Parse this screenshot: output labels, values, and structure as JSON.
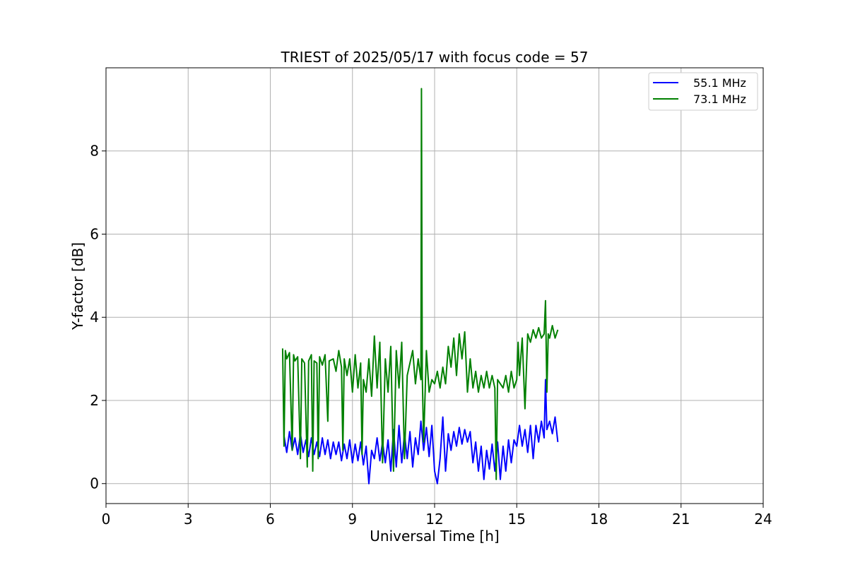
{
  "chart_data": {
    "type": "line",
    "title": "TRIEST of 2025/05/17 with focus code = 57",
    "xlabel": "Universal Time [h]",
    "ylabel": "Y-factor [dB]",
    "xlim": [
      0,
      24
    ],
    "ylim": [
      -0.48,
      10.0
    ],
    "xticks": [
      0,
      3,
      6,
      9,
      12,
      15,
      18,
      21,
      24
    ],
    "yticks": [
      0,
      2,
      4,
      6,
      8
    ],
    "grid": true,
    "legend_position": "top-right",
    "series": [
      {
        "name": "55.1 MHz",
        "color": "#0000ff",
        "points": [
          [
            6.5,
            1.15
          ],
          [
            6.6,
            0.75
          ],
          [
            6.7,
            1.25
          ],
          [
            6.8,
            0.8
          ],
          [
            6.9,
            1.1
          ],
          [
            7.0,
            0.7
          ],
          [
            7.1,
            1.2
          ],
          [
            7.2,
            0.75
          ],
          [
            7.3,
            1.05
          ],
          [
            7.4,
            0.65
          ],
          [
            7.5,
            1.1
          ],
          [
            7.6,
            0.7
          ],
          [
            7.7,
            1.0
          ],
          [
            7.8,
            0.65
          ],
          [
            7.9,
            1.1
          ],
          [
            8.0,
            0.7
          ],
          [
            8.1,
            1.05
          ],
          [
            8.2,
            0.6
          ],
          [
            8.3,
            1.0
          ],
          [
            8.4,
            0.7
          ],
          [
            8.5,
            1.0
          ],
          [
            8.6,
            0.55
          ],
          [
            8.7,
            0.95
          ],
          [
            8.8,
            0.6
          ],
          [
            8.9,
            1.05
          ],
          [
            9.0,
            0.5
          ],
          [
            9.1,
            0.95
          ],
          [
            9.2,
            0.55
          ],
          [
            9.3,
            1.0
          ],
          [
            9.4,
            0.45
          ],
          [
            9.5,
            0.9
          ],
          [
            9.6,
            0.0
          ],
          [
            9.7,
            0.8
          ],
          [
            9.8,
            0.6
          ],
          [
            9.9,
            1.1
          ],
          [
            10.0,
            0.55
          ],
          [
            10.1,
            1.0
          ],
          [
            10.2,
            0.5
          ],
          [
            10.3,
            1.05
          ],
          [
            10.4,
            0.3
          ],
          [
            10.5,
            1.3
          ],
          [
            10.6,
            0.4
          ],
          [
            10.7,
            1.4
          ],
          [
            10.8,
            0.5
          ],
          [
            10.9,
            1.2
          ],
          [
            11.0,
            0.6
          ],
          [
            11.1,
            1.25
          ],
          [
            11.2,
            0.4
          ],
          [
            11.3,
            1.1
          ],
          [
            11.4,
            0.7
          ],
          [
            11.5,
            1.5
          ],
          [
            11.6,
            0.8
          ],
          [
            11.7,
            1.35
          ],
          [
            11.8,
            0.65
          ],
          [
            11.9,
            1.4
          ],
          [
            12.0,
            0.3
          ],
          [
            12.1,
            0.0
          ],
          [
            12.2,
            0.6
          ],
          [
            12.3,
            1.6
          ],
          [
            12.4,
            0.3
          ],
          [
            12.5,
            1.2
          ],
          [
            12.6,
            0.8
          ],
          [
            12.7,
            1.25
          ],
          [
            12.8,
            0.9
          ],
          [
            12.9,
            1.35
          ],
          [
            13.0,
            0.95
          ],
          [
            13.1,
            1.3
          ],
          [
            13.2,
            1.0
          ],
          [
            13.3,
            1.25
          ],
          [
            13.4,
            0.5
          ],
          [
            13.5,
            1.0
          ],
          [
            13.6,
            0.3
          ],
          [
            13.7,
            0.9
          ],
          [
            13.8,
            0.1
          ],
          [
            13.9,
            0.8
          ],
          [
            14.0,
            0.35
          ],
          [
            14.1,
            0.95
          ],
          [
            14.2,
            0.3
          ],
          [
            14.3,
            1.0
          ],
          [
            14.4,
            0.1
          ],
          [
            14.5,
            0.9
          ],
          [
            14.6,
            0.3
          ],
          [
            14.7,
            1.05
          ],
          [
            14.8,
            0.5
          ],
          [
            14.9,
            1.05
          ],
          [
            15.0,
            0.9
          ],
          [
            15.1,
            1.4
          ],
          [
            15.2,
            0.9
          ],
          [
            15.3,
            1.3
          ],
          [
            15.4,
            0.75
          ],
          [
            15.5,
            1.4
          ],
          [
            15.6,
            0.6
          ],
          [
            15.7,
            1.4
          ],
          [
            15.8,
            1.0
          ],
          [
            15.9,
            1.5
          ],
          [
            16.0,
            1.1
          ],
          [
            16.05,
            2.5
          ],
          [
            16.1,
            1.3
          ],
          [
            16.2,
            1.5
          ],
          [
            16.3,
            1.2
          ],
          [
            16.4,
            1.6
          ],
          [
            16.5,
            1.0
          ]
        ]
      },
      {
        "name": "73.1 MHz",
        "color": "#008000",
        "points": [
          [
            6.45,
            3.25
          ],
          [
            6.5,
            0.9
          ],
          [
            6.55,
            3.2
          ],
          [
            6.6,
            3.0
          ],
          [
            6.7,
            3.15
          ],
          [
            6.8,
            0.8
          ],
          [
            6.85,
            3.1
          ],
          [
            6.9,
            2.95
          ],
          [
            7.0,
            3.05
          ],
          [
            7.1,
            0.6
          ],
          [
            7.15,
            3.0
          ],
          [
            7.25,
            2.9
          ],
          [
            7.35,
            0.4
          ],
          [
            7.4,
            2.95
          ],
          [
            7.5,
            3.1
          ],
          [
            7.55,
            0.3
          ],
          [
            7.6,
            2.95
          ],
          [
            7.7,
            2.9
          ],
          [
            7.75,
            0.6
          ],
          [
            7.8,
            3.05
          ],
          [
            7.9,
            2.85
          ],
          [
            8.0,
            3.1
          ],
          [
            8.1,
            1.5
          ],
          [
            8.15,
            2.95
          ],
          [
            8.3,
            3.0
          ],
          [
            8.4,
            2.7
          ],
          [
            8.5,
            3.2
          ],
          [
            8.6,
            2.8
          ],
          [
            8.65,
            0.8
          ],
          [
            8.7,
            3.0
          ],
          [
            8.8,
            2.6
          ],
          [
            8.9,
            3.0
          ],
          [
            9.0,
            2.2
          ],
          [
            9.1,
            3.1
          ],
          [
            9.2,
            2.3
          ],
          [
            9.3,
            2.9
          ],
          [
            9.35,
            0.7
          ],
          [
            9.4,
            2.5
          ],
          [
            9.5,
            2.2
          ],
          [
            9.6,
            3.0
          ],
          [
            9.7,
            2.1
          ],
          [
            9.8,
            3.55
          ],
          [
            9.9,
            2.3
          ],
          [
            10.0,
            3.4
          ],
          [
            10.1,
            0.5
          ],
          [
            10.2,
            3.0
          ],
          [
            10.3,
            2.2
          ],
          [
            10.4,
            3.3
          ],
          [
            10.5,
            0.3
          ],
          [
            10.6,
            3.2
          ],
          [
            10.7,
            2.3
          ],
          [
            10.8,
            3.4
          ],
          [
            10.9,
            0.6
          ],
          [
            11.0,
            2.6
          ],
          [
            11.1,
            2.9
          ],
          [
            11.2,
            3.2
          ],
          [
            11.3,
            2.4
          ],
          [
            11.4,
            3.0
          ],
          [
            11.5,
            2.5
          ],
          [
            11.52,
            9.5
          ],
          [
            11.55,
            2.6
          ],
          [
            11.6,
            1.0
          ],
          [
            11.7,
            3.2
          ],
          [
            11.8,
            2.2
          ],
          [
            11.9,
            2.5
          ],
          [
            12.0,
            2.4
          ],
          [
            12.1,
            2.7
          ],
          [
            12.2,
            2.3
          ],
          [
            12.3,
            2.8
          ],
          [
            12.4,
            2.4
          ],
          [
            12.5,
            3.3
          ],
          [
            12.6,
            2.8
          ],
          [
            12.7,
            3.5
          ],
          [
            12.8,
            2.6
          ],
          [
            12.9,
            3.6
          ],
          [
            13.0,
            3.0
          ],
          [
            13.1,
            3.65
          ],
          [
            13.2,
            2.2
          ],
          [
            13.3,
            3.0
          ],
          [
            13.4,
            2.3
          ],
          [
            13.5,
            2.7
          ],
          [
            13.6,
            2.2
          ],
          [
            13.7,
            2.6
          ],
          [
            13.8,
            2.3
          ],
          [
            13.9,
            2.7
          ],
          [
            14.0,
            2.3
          ],
          [
            14.1,
            2.6
          ],
          [
            14.2,
            2.3
          ],
          [
            14.25,
            0.1
          ],
          [
            14.3,
            2.5
          ],
          [
            14.5,
            2.3
          ],
          [
            14.6,
            2.6
          ],
          [
            14.7,
            2.2
          ],
          [
            14.8,
            2.7
          ],
          [
            14.9,
            2.3
          ],
          [
            15.0,
            2.5
          ],
          [
            15.05,
            3.4
          ],
          [
            15.1,
            2.6
          ],
          [
            15.2,
            3.5
          ],
          [
            15.3,
            1.8
          ],
          [
            15.4,
            3.6
          ],
          [
            15.5,
            3.4
          ],
          [
            15.6,
            3.7
          ],
          [
            15.7,
            3.5
          ],
          [
            15.8,
            3.75
          ],
          [
            15.9,
            3.5
          ],
          [
            16.0,
            3.6
          ],
          [
            16.05,
            4.4
          ],
          [
            16.1,
            2.2
          ],
          [
            16.15,
            3.6
          ],
          [
            16.2,
            3.5
          ],
          [
            16.3,
            3.8
          ],
          [
            16.4,
            3.5
          ],
          [
            16.5,
            3.7
          ]
        ]
      }
    ]
  }
}
